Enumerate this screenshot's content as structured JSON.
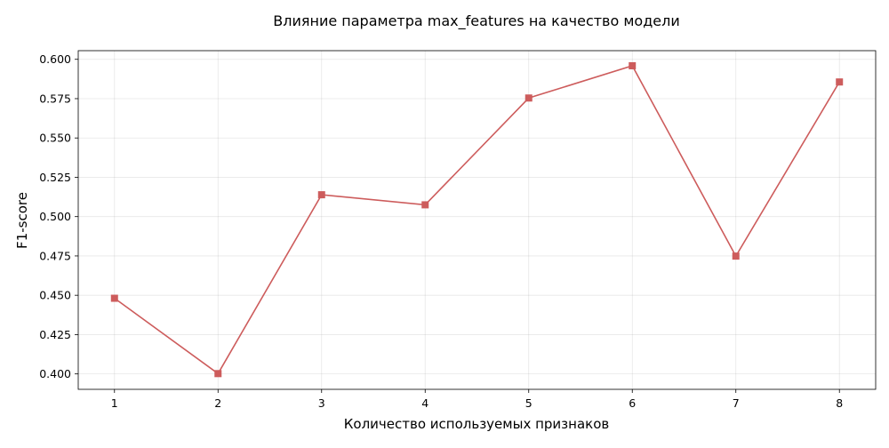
{
  "chart_data": {
    "type": "line",
    "title": "Влияние параметра max_features на качество модели",
    "xlabel": "Количество используемых признаков",
    "ylabel": "F1-score",
    "x": [
      1,
      2,
      3,
      4,
      5,
      6,
      7,
      8
    ],
    "x_ticks": [
      "1",
      "2",
      "3",
      "4",
      "5",
      "6",
      "7",
      "8"
    ],
    "y_ticks": [
      "0.400",
      "0.425",
      "0.450",
      "0.475",
      "0.500",
      "0.525",
      "0.550",
      "0.575",
      "0.600"
    ],
    "xlim": [
      0.65,
      8.35
    ],
    "ylim": [
      0.3902,
      0.6055
    ],
    "grid": true,
    "series": [
      {
        "values": [
          0.4481,
          0.4002,
          0.5139,
          0.5075,
          0.5754,
          0.5959,
          0.4749,
          0.5856
        ],
        "color": "#cd5c5c",
        "marker": "square"
      }
    ]
  }
}
